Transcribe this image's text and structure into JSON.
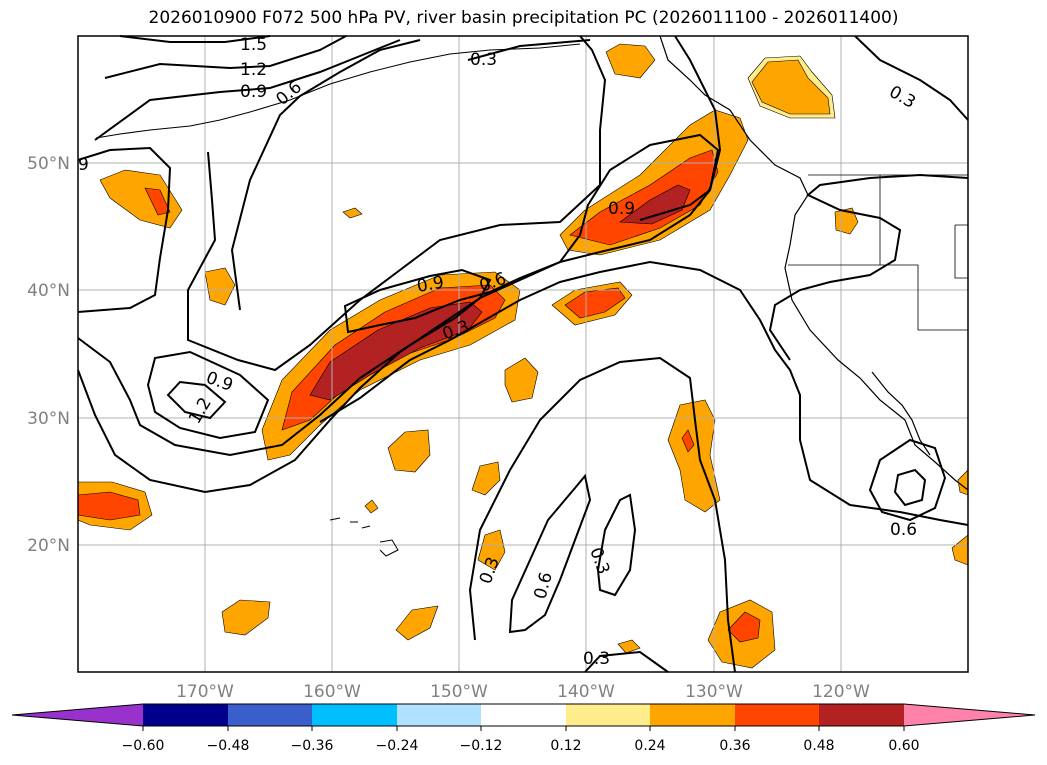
{
  "title": "2026010900 F072 500 hPa PV, river basin precipitation PC (2026011100 - 2026011400)",
  "colors": {
    "c_m060": "#9932cc",
    "c_m048": "#00008b",
    "c_m036": "#3a5fcd",
    "c_m024": "#00bfff",
    "c_m012": "#b0e2ff",
    "c_0": "#ffffff",
    "c_012": "#ffec8b",
    "c_024": "#ffa500",
    "c_036": "#ff4500",
    "c_048": "#b22222",
    "c_060": "#ff82ab",
    "gridline": "#b0b0b0",
    "coast": "#000000"
  },
  "chart_data": {
    "type": "map",
    "lon_range": [
      -180,
      -110
    ],
    "lat_range": [
      10,
      60
    ],
    "grid": true,
    "lon_ticks": [
      "170°W",
      "160°W",
      "150°W",
      "140°W",
      "130°W",
      "120°W"
    ],
    "lat_ticks": [
      "20°N",
      "30°N",
      "40°N",
      "50°N"
    ],
    "contour_labels": [
      "1.5",
      "1.2",
      "0.9",
      "0.6",
      "0.3",
      "0.9",
      "0.3",
      "0.9",
      "0.6",
      "0.9",
      "0.3",
      "0.9",
      "1.2",
      "0.3",
      "0.6",
      "0.3",
      "0.3",
      "0.6",
      "0.3",
      "9"
    ],
    "colorbar": {
      "ticks": [
        "−0.60",
        "−0.48",
        "−0.36",
        "−0.24",
        "−0.12",
        "0.12",
        "0.24",
        "0.36",
        "0.48",
        "0.60"
      ],
      "extend": "both"
    }
  }
}
